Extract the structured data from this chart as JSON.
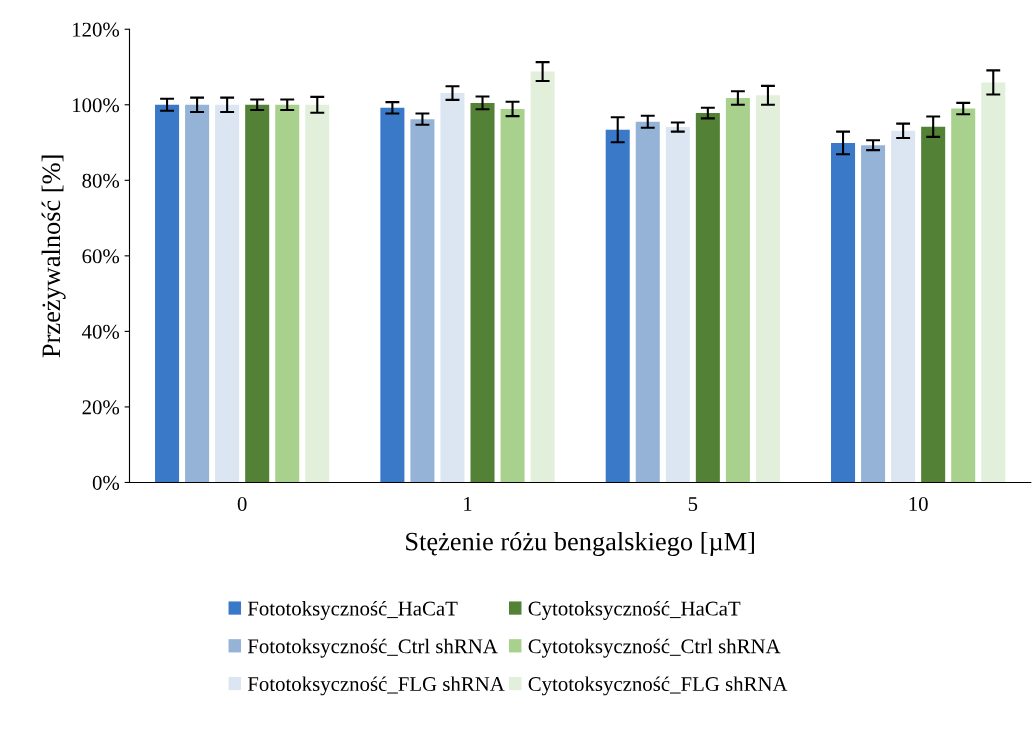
{
  "chart_data": {
    "type": "bar",
    "xlabel": "Stężenie różu bengalskiego [µM]",
    "ylabel": "Przeżywalność [%]",
    "categories": [
      "0",
      "1",
      "5",
      "10"
    ],
    "ylim": [
      0,
      120
    ],
    "yticks": [
      {
        "value": 0,
        "label": "0%"
      },
      {
        "value": 20,
        "label": "20%"
      },
      {
        "value": 40,
        "label": "40%"
      },
      {
        "value": 60,
        "label": "60%"
      },
      {
        "value": 80,
        "label": "80%"
      },
      {
        "value": 100,
        "label": "100%"
      },
      {
        "value": 120,
        "label": "120%"
      }
    ],
    "grid": false,
    "legend": "bottom",
    "series": [
      {
        "name": "Fototoksyczność_HaCaT",
        "color": "#3a78c8",
        "values": [
          100,
          99.2,
          93.4,
          89.9
        ],
        "errors": [
          1.6,
          1.5,
          3.3,
          3.0
        ]
      },
      {
        "name": "Fototoksyczność_Ctrl shRNA",
        "color": "#95b3d7",
        "values": [
          100,
          96.2,
          95.5,
          89.3
        ],
        "errors": [
          1.9,
          1.5,
          1.6,
          1.3
        ]
      },
      {
        "name": "Fototoksyczność_FLG shRNA",
        "color": "#dce6f2",
        "values": [
          100,
          103.1,
          94.1,
          93.1
        ],
        "errors": [
          1.9,
          1.8,
          1.2,
          1.9
        ]
      },
      {
        "name": "Cytotoksyczność_HaCaT",
        "color": "#538135",
        "values": [
          100,
          100.5,
          97.8,
          94.2
        ],
        "errors": [
          1.4,
          1.7,
          1.4,
          2.7
        ]
      },
      {
        "name": "Cytotoksyczność_Ctrl shRNA",
        "color": "#a9d18e",
        "values": [
          100,
          98.9,
          101.8,
          99.0
        ],
        "errors": [
          1.4,
          1.9,
          1.8,
          1.5
        ]
      },
      {
        "name": "Cytotoksyczność_FLG shRNA",
        "color": "#e2efda",
        "values": [
          100,
          108.8,
          102.5,
          105.9
        ],
        "errors": [
          2.1,
          2.5,
          2.5,
          3.2
        ]
      }
    ]
  }
}
